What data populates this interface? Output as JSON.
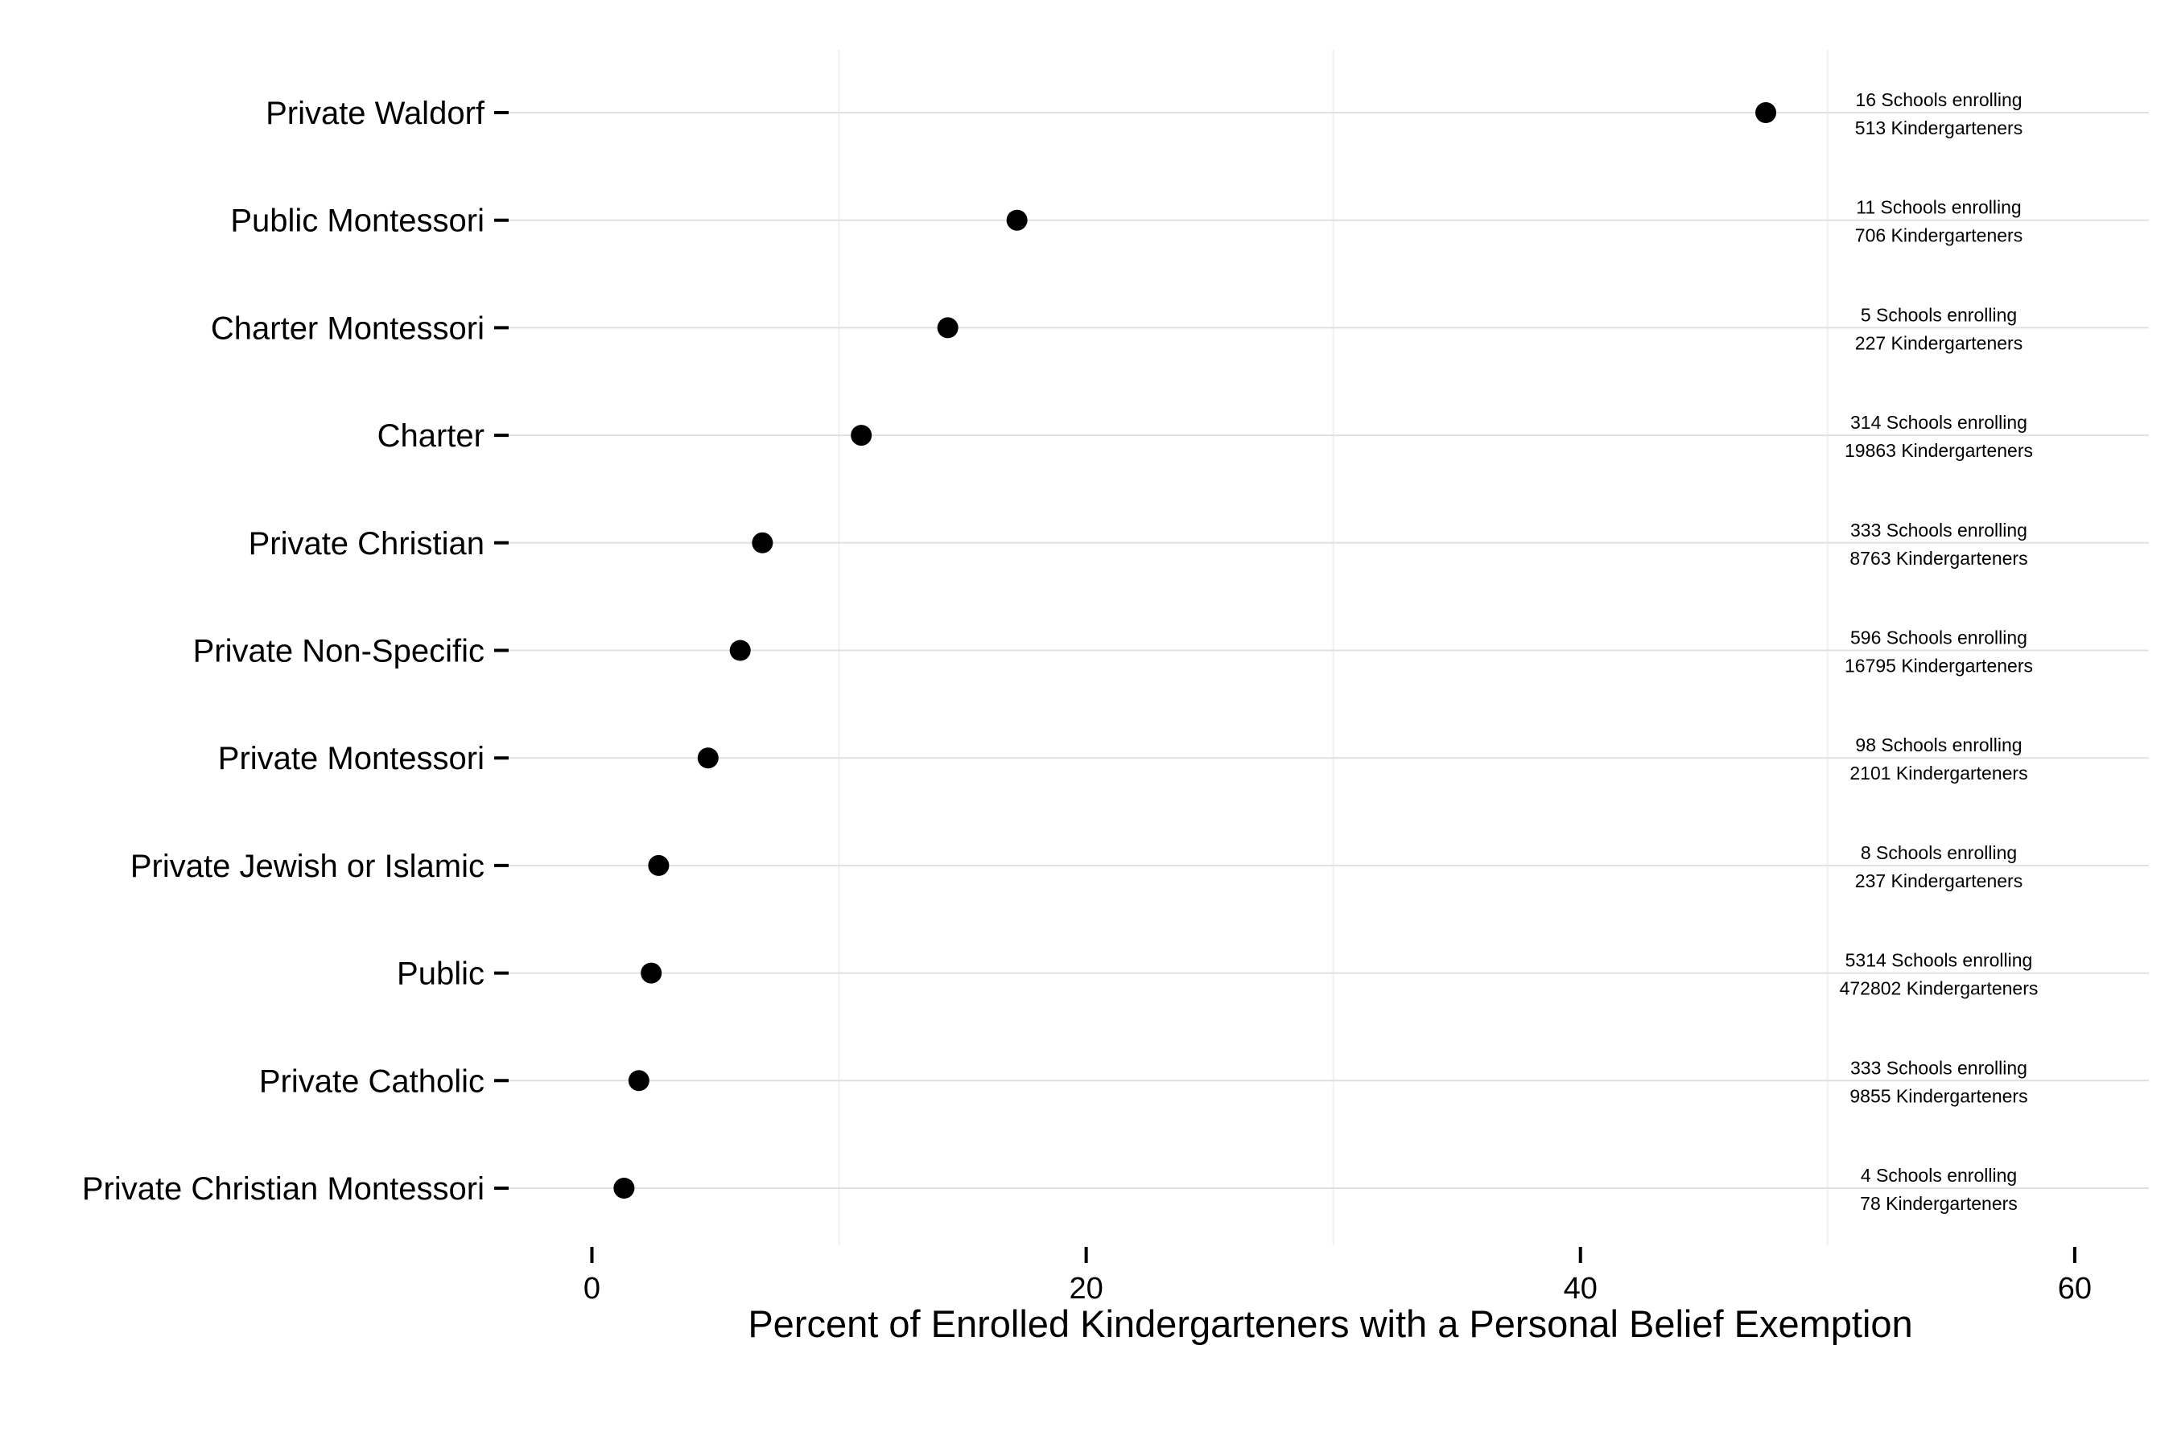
{
  "chart_data": {
    "type": "scatter",
    "title": "",
    "xlabel": "Percent of Enrolled Kindergarteners with a Personal Belief Exemption",
    "ylabel": "",
    "xlim": [
      -3.5,
      63
    ],
    "xticks": [
      0,
      20,
      40,
      60
    ],
    "minor_gridlines": [
      10,
      30,
      50
    ],
    "categories": [
      "Private Waldorf",
      "Public Montessori",
      "Charter Montessori",
      "Charter",
      "Private Christian",
      "Private Non-Specific",
      "Private Montessori",
      "Private Jewish or Islamic",
      "Public",
      "Private Catholic",
      "Private Christian Montessori"
    ],
    "values": [
      47.5,
      17.2,
      14.4,
      10.9,
      6.9,
      6.0,
      4.7,
      2.7,
      2.4,
      1.9,
      1.3
    ],
    "annotations": [
      [
        "16 Schools enrolling",
        "513 Kindergarteners"
      ],
      [
        "11 Schools enrolling",
        "706 Kindergarteners"
      ],
      [
        "5 Schools enrolling",
        "227 Kindergarteners"
      ],
      [
        "314 Schools enrolling",
        "19863 Kindergarteners"
      ],
      [
        "333 Schools enrolling",
        "8763 Kindergarteners"
      ],
      [
        "596 Schools enrolling",
        "16795 Kindergarteners"
      ],
      [
        "98 Schools enrolling",
        "2101 Kindergarteners"
      ],
      [
        "8 Schools enrolling",
        "237 Kindergarteners"
      ],
      [
        "5314 Schools enrolling",
        "472802 Kindergarteners"
      ],
      [
        "333 Schools enrolling",
        "9855 Kindergarteners"
      ],
      [
        "4 Schools enrolling",
        "78 Kindergarteners"
      ]
    ],
    "annotation_x": 54.5,
    "grid": true,
    "colors": {
      "point": "#000000",
      "grid_major": "#e0e0e0",
      "grid_minor": "#f0f0f0",
      "text": "#000000"
    }
  }
}
